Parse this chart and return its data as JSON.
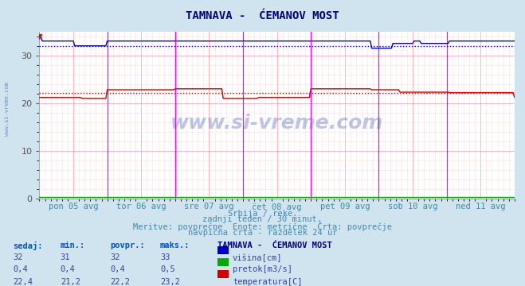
{
  "title": "TAMNAVA -  ĆEMANOV MOST",
  "bg_color": "#d0e4f0",
  "plot_bg_color": "#ffffff",
  "grid_color_major": "#ffaaaa",
  "grid_color_minor": "#ffdddd",
  "vline_color": "#ff00ff",
  "xlabel_color": "#4488aa",
  "ylabel_ticks": [
    0,
    10,
    20,
    30
  ],
  "ylim": [
    0,
    35
  ],
  "xlim": [
    0,
    336
  ],
  "x_tick_positions": [
    0,
    48,
    96,
    144,
    192,
    240,
    288,
    336
  ],
  "x_tick_labels": [
    "pon 05 avg",
    "tor 06 avg",
    "sre 07 avg",
    "čet 08 avg",
    "pet 09 avg",
    "sob 10 avg",
    "ned 11 avg"
  ],
  "vline_positions": [
    48,
    96,
    144,
    192,
    240,
    288
  ],
  "subtitle1": "Srbija / reke.",
  "subtitle2": "zadnji teden / 30 minut.",
  "subtitle3": "Meritve: povprečne  Enote: metrične  Črta: povprečje",
  "subtitle4": "navpična črta - razdelek 24 ur",
  "table_header": [
    "sedaj:",
    "min.:",
    "povpr.:",
    "maks.:"
  ],
  "table_rows": [
    [
      "32",
      "31",
      "32",
      "33"
    ],
    [
      "0,4",
      "0,4",
      "0,4",
      "0,5"
    ],
    [
      "22,4",
      "21,2",
      "22,2",
      "23,2"
    ]
  ],
  "legend_title": "TAMNAVA -  ĆEMANOV MOST",
  "legend_items": [
    {
      "label": "višina[cm]",
      "color": "#0000cc"
    },
    {
      "label": "pretok[m3/s]",
      "color": "#00aa00"
    },
    {
      "label": "temperatura[C]",
      "color": "#cc0000"
    }
  ],
  "watermark": "www.si-vreme.com",
  "visina_avg": 32,
  "temperatura_avg": 22.2,
  "pretok_avg": 0.4,
  "visina_color": "#0000cc",
  "temperatura_color": "#cc0000",
  "pretok_color": "#00aa00"
}
